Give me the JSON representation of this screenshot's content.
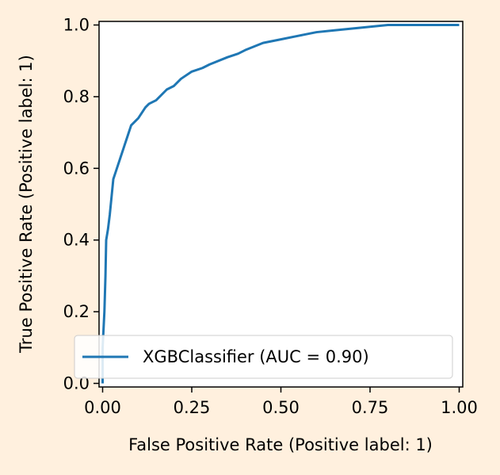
{
  "chart_data": {
    "type": "line",
    "title": "",
    "xlabel": "False Positive Rate (Positive label: 1)",
    "ylabel": "True Positive Rate (Positive label: 1)",
    "xlim": [
      -0.01,
      1.01
    ],
    "ylim": [
      -0.01,
      1.01
    ],
    "xticks": [
      0.0,
      0.25,
      0.5,
      0.75,
      1.0
    ],
    "xtick_labels": [
      "0.00",
      "0.25",
      "0.50",
      "0.75",
      "1.00"
    ],
    "yticks": [
      0.0,
      0.2,
      0.4,
      0.6,
      0.8,
      1.0
    ],
    "ytick_labels": [
      "0.0",
      "0.2",
      "0.4",
      "0.6",
      "0.8",
      "1.0"
    ],
    "grid": false,
    "legend_position": "lower-right",
    "series": [
      {
        "name": "XGBClassifier (AUC = 0.90)",
        "color": "#1f77b4",
        "x": [
          0.0,
          0.0,
          0.005,
          0.008,
          0.01,
          0.015,
          0.02,
          0.025,
          0.03,
          0.04,
          0.05,
          0.06,
          0.07,
          0.08,
          0.09,
          0.1,
          0.12,
          0.13,
          0.15,
          0.18,
          0.2,
          0.22,
          0.25,
          0.28,
          0.3,
          0.35,
          0.38,
          0.4,
          0.45,
          0.5,
          0.55,
          0.6,
          0.65,
          0.7,
          0.75,
          0.8,
          0.85,
          0.9,
          0.95,
          1.0
        ],
        "y": [
          0.0,
          0.1,
          0.2,
          0.3,
          0.4,
          0.43,
          0.47,
          0.52,
          0.57,
          0.6,
          0.63,
          0.66,
          0.69,
          0.72,
          0.73,
          0.74,
          0.77,
          0.78,
          0.79,
          0.82,
          0.83,
          0.85,
          0.87,
          0.88,
          0.89,
          0.91,
          0.92,
          0.93,
          0.95,
          0.96,
          0.97,
          0.98,
          0.985,
          0.99,
          0.995,
          1.0,
          1.0,
          1.0,
          1.0,
          1.0
        ]
      }
    ]
  }
}
